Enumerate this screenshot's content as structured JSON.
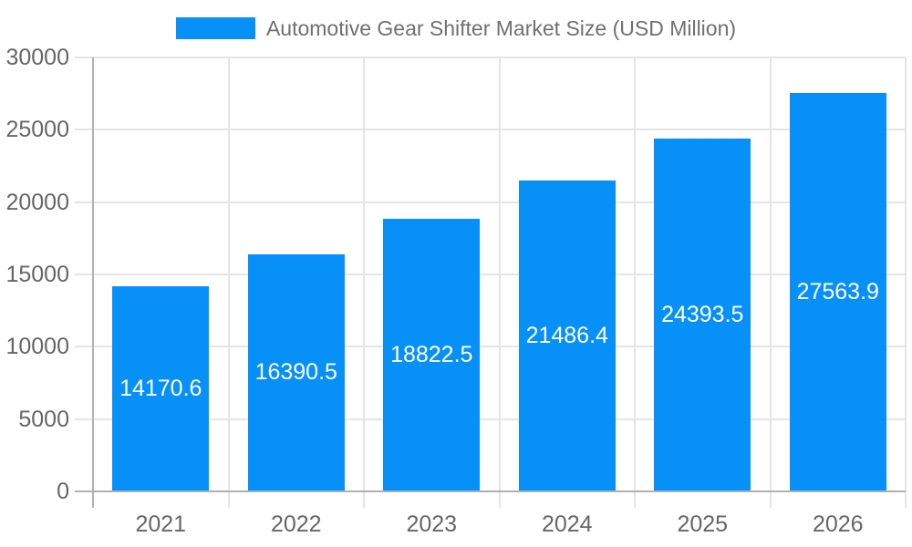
{
  "legend": {
    "label": "Automotive Gear Shifter Market Size (USD Million)",
    "swatch_color": "#0690F8",
    "position": "top-center"
  },
  "colors": {
    "bar": "#0690F8",
    "grid_line": "#e5e5e5",
    "axis_line": "#b0b0b0",
    "axis_tick_label": "#666666",
    "legend_text": "#707070",
    "value_label": "#ffffff",
    "background": "#ffffff"
  },
  "chart_data": {
    "type": "bar",
    "title": "Automotive Gear Shifter Market Size (USD Million)",
    "categories": [
      "2021",
      "2022",
      "2023",
      "2024",
      "2025",
      "2026"
    ],
    "values": [
      14170.6,
      16390.5,
      18822.5,
      21486.4,
      24393.5,
      27563.9
    ],
    "data_labels": [
      "14170.6",
      "16390.5",
      "18822.5",
      "21486.4",
      "24393.5",
      "27563.9"
    ],
    "xlabel": "",
    "ylabel": "",
    "ylim": [
      0,
      30000
    ],
    "ytick_interval": 5000,
    "ytick_labels": [
      "0",
      "5000",
      "10000",
      "15000",
      "20000",
      "25000",
      "30000"
    ],
    "grid": true,
    "data_label_position": "inside-center",
    "legend_position": "top-center",
    "bar_color": "#0690F8"
  }
}
